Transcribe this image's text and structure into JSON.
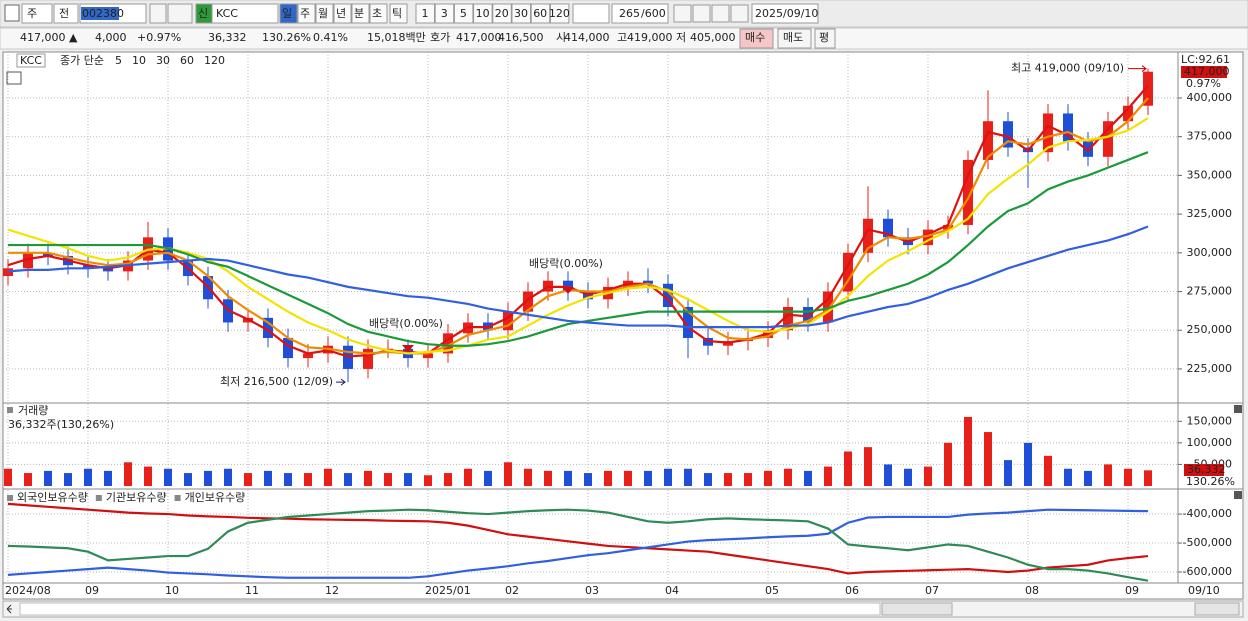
{
  "toolbar": {
    "market": "주",
    "type": "전",
    "code": "002380",
    "name": "KCC",
    "tag": "신",
    "periods": [
      "일",
      "주",
      "월",
      "년",
      "분",
      "초",
      "틱"
    ],
    "intervals": [
      "1",
      "3",
      "5",
      "10",
      "20",
      "30",
      "60",
      "120"
    ],
    "count": "265",
    "max": "/600",
    "date": "2025/09/10"
  },
  "info": {
    "price": "417,000 ▲",
    "change": "4,000",
    "rate": "+0.97%",
    "volume": "36,332",
    "volume_rate": "130.26%",
    "turnover": "0.41%",
    "amount": "15,018백만",
    "quote_label": "호가",
    "ask": "417,000",
    "bid": "416,500",
    "open_label": "시",
    "open": "414,000",
    "high_label": "고",
    "high": "419,000",
    "low_label": "저",
    "low": "405,000",
    "buy": "매수",
    "sell": "매도",
    "avg": "평"
  },
  "chart_data": [
    {
      "type": "candlestick",
      "symbol": "KCC",
      "legend_prefix": "종가 단순",
      "up_color": "#e8201a",
      "down_color": "#1f4fd8",
      "grid": true,
      "categories": [
        "2024/08",
        null,
        null,
        null,
        "09",
        null,
        null,
        null,
        "10",
        null,
        null,
        null,
        "11",
        null,
        null,
        null,
        "12",
        null,
        null,
        null,
        null,
        "2025/01",
        null,
        null,
        null,
        "02",
        null,
        null,
        null,
        "03",
        null,
        null,
        null,
        "04",
        null,
        null,
        null,
        null,
        "05",
        null,
        null,
        null,
        "06",
        null,
        null,
        null,
        "07",
        null,
        null,
        null,
        null,
        "08",
        null,
        null,
        null,
        null,
        "09",
        null
      ],
      "last_date": "09/10",
      "open": [
        285000,
        290000,
        300000,
        298000,
        292000,
        290000,
        288000,
        295000,
        310000,
        295000,
        285000,
        270000,
        255000,
        258000,
        245000,
        232000,
        235000,
        240000,
        225000,
        238000,
        238000,
        232000,
        235000,
        248000,
        255000,
        250000,
        262000,
        275000,
        282000,
        275000,
        270000,
        278000,
        282000,
        280000,
        265000,
        245000,
        240000,
        243000,
        245000,
        250000,
        265000,
        255000,
        275000,
        300000,
        322000,
        310000,
        305000,
        315000,
        318000,
        360000,
        385000,
        368000,
        365000,
        390000,
        372000,
        362000,
        385000,
        395000
      ],
      "high": [
        296000,
        306000,
        306000,
        304000,
        298000,
        296000,
        301000,
        320000,
        316000,
        301000,
        291000,
        276000,
        264000,
        264000,
        251000,
        241000,
        246000,
        246000,
        244000,
        244000,
        244000,
        241000,
        254000,
        261000,
        261000,
        268000,
        281000,
        288000,
        288000,
        281000,
        284000,
        288000,
        290000,
        286000,
        271000,
        251000,
        249000,
        251000,
        256000,
        271000,
        271000,
        281000,
        306000,
        343000,
        328000,
        316000,
        321000,
        324000,
        366000,
        405000,
        391000,
        374000,
        396000,
        396000,
        378000,
        391000,
        401000,
        419000
      ],
      "low": [
        279000,
        284000,
        292000,
        286000,
        284000,
        282000,
        282000,
        289000,
        289000,
        279000,
        264000,
        249000,
        249000,
        239000,
        226000,
        226000,
        229000,
        216500,
        219000,
        232000,
        226000,
        226000,
        229000,
        242000,
        244000,
        244000,
        256000,
        269000,
        269000,
        264000,
        264000,
        272000,
        274000,
        259000,
        232000,
        234000,
        234000,
        237000,
        239000,
        244000,
        249000,
        249000,
        269000,
        294000,
        304000,
        299000,
        299000,
        309000,
        312000,
        354000,
        362000,
        342000,
        359000,
        366000,
        356000,
        356000,
        379000,
        389000
      ],
      "close": [
        290000,
        300000,
        298000,
        292000,
        290000,
        288000,
        295000,
        310000,
        295000,
        285000,
        270000,
        255000,
        258000,
        245000,
        232000,
        235000,
        240000,
        225000,
        238000,
        238000,
        232000,
        235000,
        248000,
        255000,
        250000,
        262000,
        275000,
        282000,
        275000,
        270000,
        278000,
        282000,
        280000,
        265000,
        245000,
        240000,
        243000,
        245000,
        250000,
        265000,
        255000,
        275000,
        300000,
        322000,
        310000,
        305000,
        315000,
        318000,
        360000,
        385000,
        368000,
        365000,
        390000,
        372000,
        362000,
        385000,
        395000,
        417000
      ],
      "series": [
        {
          "name": "5",
          "color": "#e01010",
          "values": [
            292000,
            296000,
            298000,
            295000,
            292000,
            290000,
            292000,
            302000,
            300000,
            290000,
            278000,
            263000,
            257000,
            250000,
            240000,
            235000,
            237000,
            233000,
            234000,
            237000,
            236000,
            235000,
            244000,
            252000,
            252000,
            258000,
            270000,
            278000,
            278000,
            273000,
            276000,
            280000,
            280000,
            270000,
            252000,
            243000,
            242000,
            244000,
            248000,
            260000,
            259000,
            270000,
            292000,
            315000,
            312000,
            307000,
            312000,
            318000,
            350000,
            378000,
            375000,
            366000,
            382000,
            376000,
            366000,
            380000,
            393000,
            408000
          ]
        },
        {
          "name": "10",
          "color": "#f08a00",
          "values": [
            300000,
            300000,
            300000,
            297000,
            294000,
            292000,
            293000,
            299000,
            300000,
            295000,
            285000,
            272000,
            263000,
            255000,
            245000,
            239000,
            238000,
            236000,
            235000,
            236000,
            235000,
            235000,
            240000,
            247000,
            250000,
            253000,
            263000,
            272000,
            276000,
            275000,
            275000,
            278000,
            280000,
            275000,
            262000,
            252000,
            245000,
            244000,
            246000,
            253000,
            256000,
            263000,
            282000,
            303000,
            310000,
            309000,
            311000,
            315000,
            335000,
            362000,
            372000,
            370000,
            375000,
            378000,
            372000,
            375000,
            385000,
            400000
          ]
        },
        {
          "name": "30",
          "color": "#f2e400",
          "values": [
            315000,
            311000,
            307000,
            303000,
            298000,
            295000,
            297000,
            302000,
            303000,
            300000,
            296000,
            288000,
            278000,
            270000,
            262000,
            255000,
            250000,
            244000,
            240000,
            237000,
            235000,
            236000,
            237000,
            240000,
            244000,
            246000,
            253000,
            260000,
            266000,
            271000,
            274000,
            277000,
            278000,
            276000,
            270000,
            263000,
            256000,
            250000,
            249000,
            251000,
            254000,
            262000,
            272000,
            285000,
            295000,
            301000,
            308000,
            314000,
            322000,
            338000,
            348000,
            357000,
            368000,
            372000,
            373000,
            375000,
            379000,
            387000
          ]
        },
        {
          "name": "60",
          "color": "#1a9a3a",
          "values": [
            305000,
            305000,
            305000,
            305000,
            305000,
            305000,
            305000,
            305000,
            303000,
            299000,
            294000,
            291000,
            285000,
            279000,
            273000,
            267000,
            261000,
            254000,
            249000,
            246000,
            243000,
            241000,
            240000,
            240000,
            241000,
            243000,
            246000,
            250000,
            254000,
            256000,
            258000,
            260000,
            262000,
            262000,
            262000,
            262000,
            262000,
            262000,
            262000,
            262000,
            262000,
            264000,
            269000,
            272000,
            276000,
            280000,
            286000,
            294000,
            305000,
            317000,
            327000,
            332000,
            341000,
            346000,
            350000,
            355000,
            360000,
            365000
          ]
        },
        {
          "name": "120",
          "color": "#3060e0",
          "values": [
            288000,
            289000,
            289000,
            290000,
            290000,
            291000,
            292000,
            293000,
            294000,
            295000,
            296000,
            295000,
            292000,
            289000,
            286000,
            284000,
            281000,
            278000,
            276000,
            274000,
            272000,
            271000,
            269000,
            267000,
            264000,
            262000,
            260000,
            258000,
            256000,
            255000,
            254000,
            253000,
            253000,
            253000,
            252000,
            252000,
            252000,
            252000,
            252000,
            253000,
            253000,
            255000,
            259000,
            262000,
            265000,
            267000,
            271000,
            276000,
            280000,
            285000,
            290000,
            294000,
            298000,
            302000,
            305000,
            308000,
            312000,
            317000
          ]
        }
      ],
      "ylim": [
        203000,
        429700
      ],
      "yticks": [
        {
          "value": 225000,
          "label": "225,000"
        },
        {
          "value": 250000,
          "label": "250,000"
        },
        {
          "value": 275000,
          "label": "275,000"
        },
        {
          "value": 300000,
          "label": "300,000"
        },
        {
          "value": 325000,
          "label": "325,000"
        },
        {
          "value": 350000,
          "label": "350,000"
        },
        {
          "value": 375000,
          "label": "375,000"
        },
        {
          "value": 400000,
          "label": "400,000"
        }
      ],
      "lc_label": "LC:92,61",
      "current_label": "417,000",
      "current_rate": "0.97%",
      "annotations": {
        "high": "최고 419,000 (09/10)",
        "low": "최저 216,500 (12/09)",
        "dividend": [
          "배당락(0.00%)",
          "배당락(0.00%)"
        ]
      }
    },
    {
      "type": "bar",
      "title": "거래량",
      "subtitle": "36,332주(130,26%)",
      "grid": true,
      "values": [
        40000,
        30000,
        35000,
        30000,
        40000,
        35000,
        55000,
        45000,
        40000,
        30000,
        35000,
        40000,
        30000,
        35000,
        30000,
        30000,
        40000,
        30000,
        35000,
        30000,
        30000,
        25000,
        30000,
        40000,
        35000,
        55000,
        40000,
        35000,
        35000,
        30000,
        35000,
        35000,
        35000,
        40000,
        40000,
        30000,
        30000,
        30000,
        35000,
        40000,
        35000,
        45000,
        80000,
        90000,
        50000,
        40000,
        45000,
        100000,
        160000,
        125000,
        60000,
        100000,
        70000,
        40000,
        35000,
        50000,
        40000,
        36332
      ],
      "ylim": [
        0,
        190000
      ],
      "yticks": [
        {
          "value": 50000,
          "label": "50,000"
        },
        {
          "value": 100000,
          "label": "100,000"
        },
        {
          "value": 150000,
          "label": "150,000"
        }
      ],
      "current_label": "36,332",
      "current_rate": "130.26%"
    },
    {
      "type": "line",
      "grid": true,
      "series": [
        {
          "name": "외국인보유수량",
          "color": "#d01010",
          "values": [
            -365000,
            -370000,
            -375000,
            -380000,
            -385000,
            -390000,
            -395000,
            -398000,
            -400000,
            -405000,
            -408000,
            -410000,
            -413000,
            -415000,
            -416000,
            -418000,
            -419000,
            -420000,
            -421000,
            -423000,
            -424000,
            -425000,
            -430000,
            -440000,
            -455000,
            -470000,
            -478000,
            -486000,
            -494000,
            -502000,
            -510000,
            -514000,
            -518000,
            -522000,
            -526000,
            -530000,
            -540000,
            -550000,
            -560000,
            -570000,
            -580000,
            -590000,
            -605000,
            -600000,
            -598000,
            -596000,
            -594000,
            -592000,
            -590000,
            -595000,
            -600000,
            -595000,
            -585000,
            -580000,
            -575000,
            -560000,
            -552000,
            -545000
          ]
        },
        {
          "name": "기관보유수량",
          "color": "#3060e0",
          "values": [
            -610000,
            -605000,
            -600000,
            -595000,
            -590000,
            -585000,
            -590000,
            -595000,
            -602000,
            -605000,
            -608000,
            -612000,
            -615000,
            -618000,
            -620000,
            -620000,
            -620000,
            -620000,
            -620000,
            -620000,
            -620000,
            -615000,
            -605000,
            -595000,
            -588000,
            -580000,
            -570000,
            -562000,
            -552000,
            -542000,
            -535000,
            -525000,
            -515000,
            -505000,
            -495000,
            -490000,
            -487000,
            -484000,
            -480000,
            -477000,
            -475000,
            -468000,
            -430000,
            -412000,
            -410000,
            -410000,
            -410000,
            -410000,
            -402000,
            -398000,
            -395000,
            -390000,
            -385000,
            -386000,
            -387000,
            -388000,
            -389000,
            -390000
          ]
        },
        {
          "name": "개인보유수량",
          "color": "#2e8b57",
          "values": [
            -510000,
            -512000,
            -515000,
            -518000,
            -530000,
            -560000,
            -555000,
            -550000,
            -545000,
            -545000,
            -520000,
            -460000,
            -430000,
            -420000,
            -410000,
            -405000,
            -400000,
            -395000,
            -390000,
            -388000,
            -385000,
            -387000,
            -392000,
            -397000,
            -400000,
            -395000,
            -390000,
            -387000,
            -385000,
            -388000,
            -395000,
            -410000,
            -425000,
            -430000,
            -425000,
            -418000,
            -415000,
            -418000,
            -420000,
            -422000,
            -425000,
            -450000,
            -505000,
            -512000,
            -518000,
            -525000,
            -515000,
            -505000,
            -510000,
            -530000,
            -550000,
            -575000,
            -590000,
            -590000,
            -595000,
            -605000,
            -618000,
            -630000
          ]
        }
      ],
      "ylim": [
        -638000,
        -317000
      ],
      "yticks": [
        {
          "value": -400000,
          "label": "-400,000"
        },
        {
          "value": -500000,
          "label": "-500,000"
        },
        {
          "value": -600000,
          "label": "-600,000"
        }
      ]
    }
  ]
}
